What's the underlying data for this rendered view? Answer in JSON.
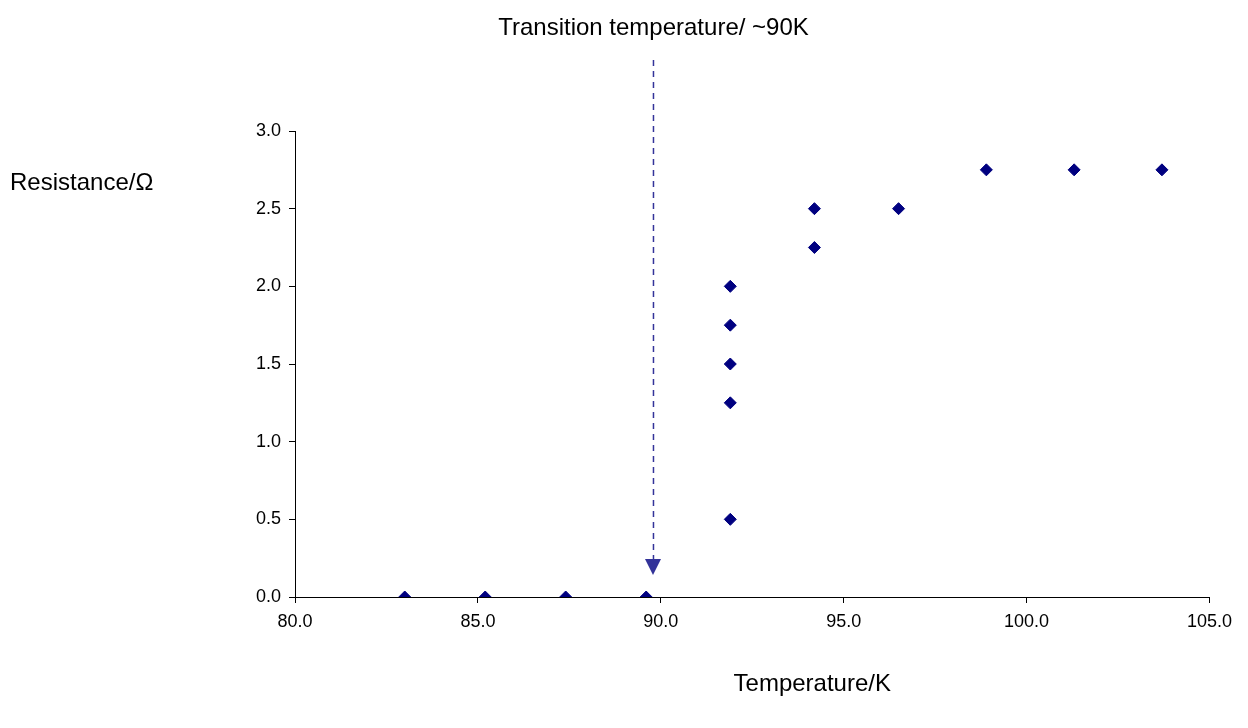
{
  "chart_data": {
    "type": "scatter",
    "xlabel": "Temperature/K",
    "ylabel": "Resistance/Ω",
    "x": [
      83.0,
      85.2,
      87.4,
      89.6,
      91.9,
      91.9,
      91.9,
      91.9,
      91.9,
      94.2,
      94.2,
      96.5,
      98.9,
      101.3,
      103.7
    ],
    "series": [
      {
        "color": "#000080",
        "values": [
          0,
          0,
          0,
          0,
          0.5,
          1.25,
          1.5,
          1.75,
          2.0,
          2.25,
          2.5,
          2.5,
          2.75,
          2.75,
          2.75
        ]
      }
    ],
    "marker": "diamond",
    "grid": false,
    "xlim": [
      80,
      105
    ],
    "xticks": [
      {
        "value": 80,
        "label": "80.0"
      },
      {
        "value": 85,
        "label": "85.0"
      },
      {
        "value": 90,
        "label": "90.0"
      },
      {
        "value": 95,
        "label": "95.0"
      },
      {
        "value": 100,
        "label": "100.0"
      },
      {
        "value": 105,
        "label": "105.0"
      }
    ],
    "ylim": [
      0,
      3
    ],
    "yticks": [
      {
        "value": 0,
        "label": "0.0"
      },
      {
        "value": 0.5,
        "label": "0.5"
      },
      {
        "value": 1,
        "label": "1.0"
      },
      {
        "value": 1.5,
        "label": "1.5"
      },
      {
        "value": 2,
        "label": "2.0"
      },
      {
        "value": 2.5,
        "label": "2.5"
      },
      {
        "value": 3,
        "label": "3.0"
      }
    ],
    "ref_lines": [
      {
        "axis": "x",
        "value": 89.8,
        "label": "Transition temperature/ ~90K",
        "color": "#333399",
        "line_style": "dashed"
      }
    ]
  }
}
